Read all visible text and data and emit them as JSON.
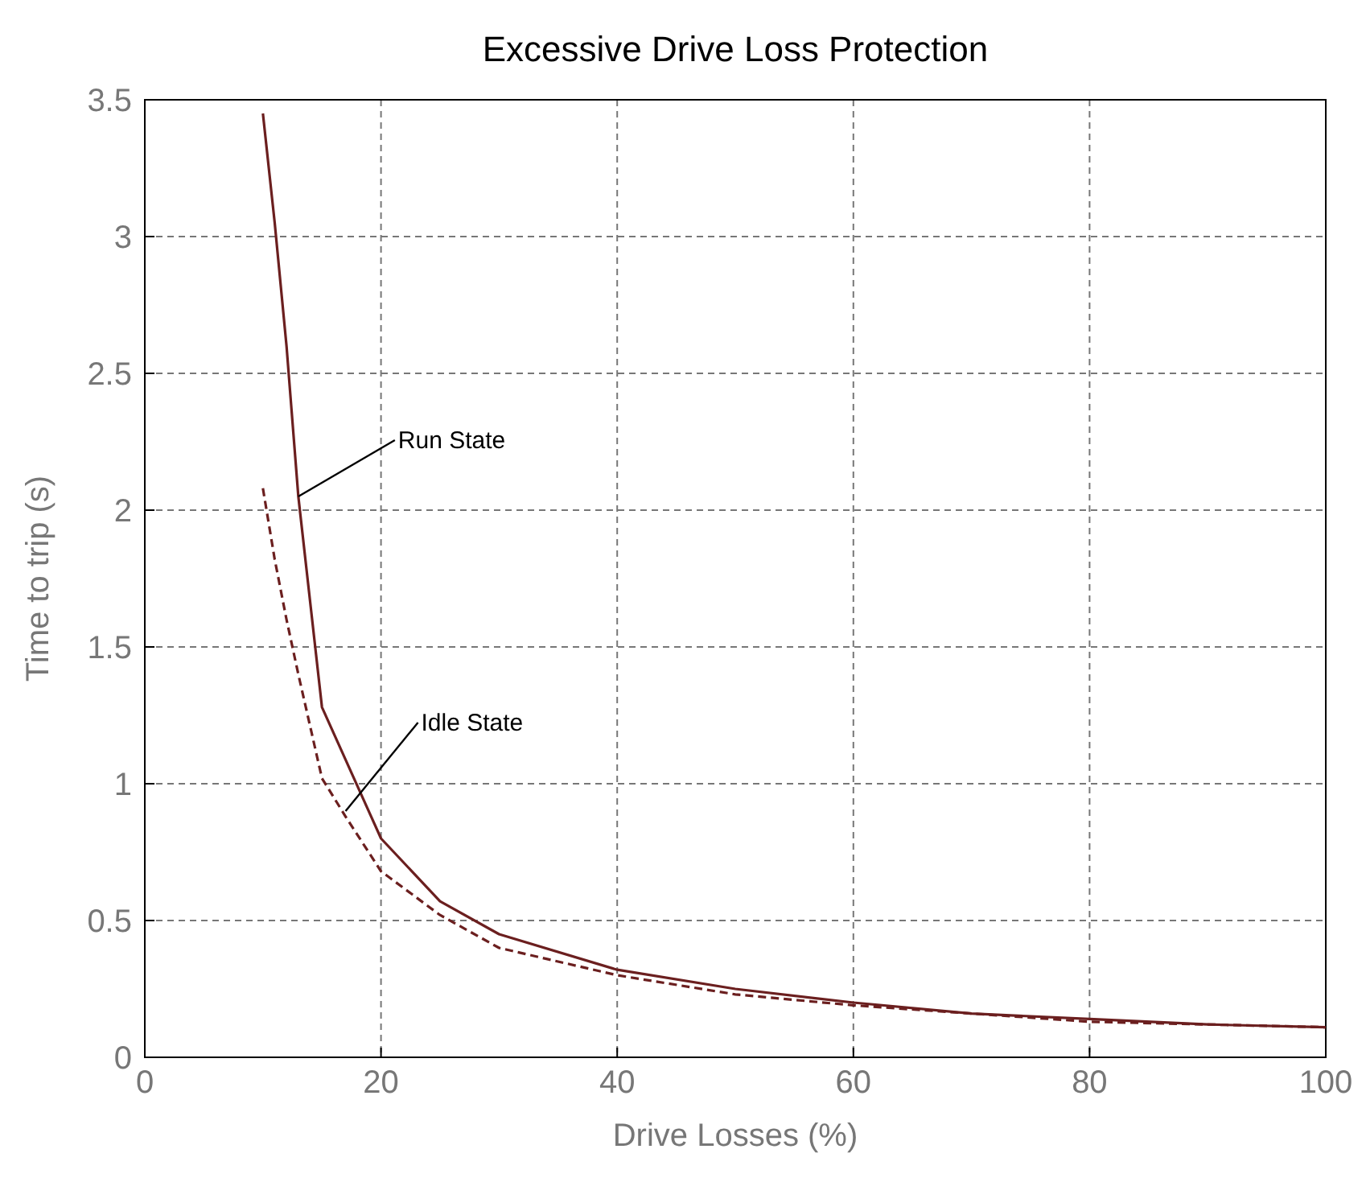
{
  "chart_data": {
    "type": "line",
    "title": "Excessive Drive Loss Protection",
    "xlabel": "Drive Losses (%)",
    "ylabel": "Time to trip (s)",
    "xlim": [
      0,
      100
    ],
    "xticks": [
      0,
      20,
      40,
      60,
      80,
      100
    ],
    "ylim": [
      0,
      3.5
    ],
    "yticks": [
      0,
      0.5,
      1,
      1.5,
      2,
      2.5,
      3,
      3.5
    ],
    "grid": true,
    "series": [
      {
        "color": "#6b1f1f",
        "line_style": "solid",
        "x": [
          10,
          11,
          12,
          13,
          15,
          20,
          25,
          30,
          40,
          50,
          60,
          70,
          80,
          90,
          100
        ],
        "values": [
          3.45,
          3.05,
          2.6,
          2.05,
          1.28,
          0.8,
          0.57,
          0.45,
          0.32,
          0.25,
          0.2,
          0.16,
          0.14,
          0.12,
          0.11
        ]
      },
      {
        "color": "#6b1f1f",
        "line_style": "dashed",
        "x": [
          10,
          11,
          12,
          13,
          15,
          17,
          20,
          25,
          30,
          40,
          50,
          60,
          70,
          80,
          90,
          100
        ],
        "values": [
          2.08,
          1.82,
          1.6,
          1.4,
          1.02,
          0.88,
          0.68,
          0.52,
          0.4,
          0.3,
          0.23,
          0.19,
          0.16,
          0.13,
          0.12,
          0.11
        ]
      }
    ],
    "annotations": [
      {
        "text": "Run State",
        "x": 13,
        "y": 2.05
      },
      {
        "text": "Idle State",
        "x": 17,
        "y": 0.9
      }
    ]
  }
}
